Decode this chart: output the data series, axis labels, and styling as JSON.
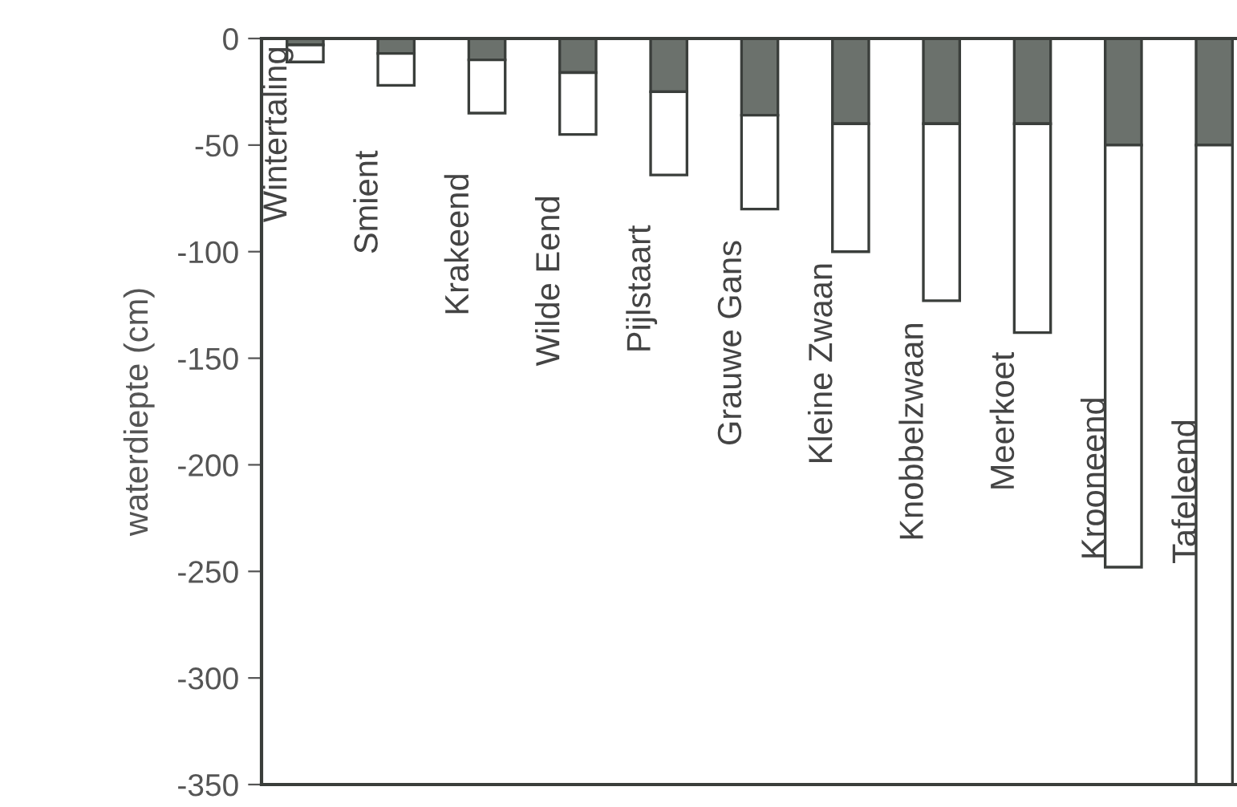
{
  "chart_data": {
    "type": "bar",
    "stacked": true,
    "ylabel": "waterdiepte (cm)",
    "categories": [
      "Wintertaling",
      "Smient",
      "Krakeend",
      "Wilde Eend",
      "Pijlstaart",
      "Grauwe Gans",
      "Kleine Zwaan",
      "Knobbelzwaan",
      "Meerkoet",
      "Krooneend",
      "Tafeleend"
    ],
    "series": [
      {
        "color": "#6b716c",
        "values": [
          -3,
          -7,
          -10,
          -16,
          -25,
          -36,
          -40,
          -40,
          -40,
          -50,
          -50
        ]
      },
      {
        "color": "#ffffff",
        "values": [
          -8,
          -15,
          -25,
          -29,
          -39,
          -44,
          -60,
          -83,
          -98,
          -198,
          -300
        ]
      }
    ],
    "ylim": [
      -350,
      0
    ],
    "yticks": [
      0,
      -50,
      -100,
      -150,
      -200,
      -250,
      -300,
      -350
    ],
    "grid": false,
    "legend": false
  }
}
